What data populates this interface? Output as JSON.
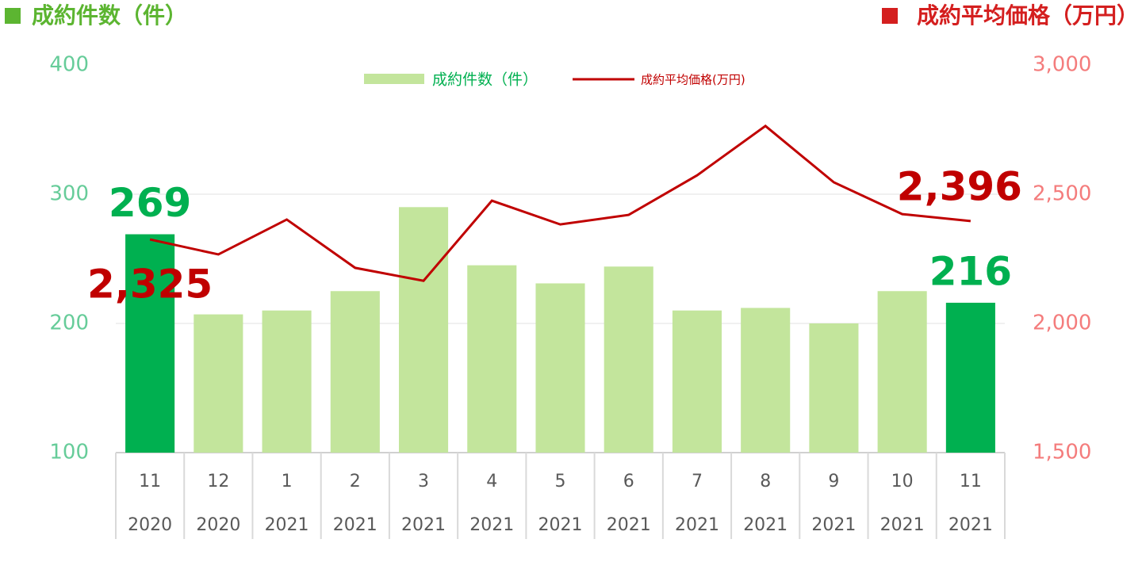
{
  "chart_data": {
    "type": "bar-line",
    "title": "成約件数（件）",
    "title_color": "#5cb531",
    "y2_title": "成約平均価格（万円）",
    "y2_title_color": "#d41f1f",
    "categories": [
      "11",
      "12",
      "1",
      "2",
      "3",
      "4",
      "5",
      "6",
      "7",
      "8",
      "9",
      "10",
      "11"
    ],
    "category_years": [
      "2020",
      "2020",
      "2021",
      "2021",
      "2021",
      "2021",
      "2021",
      "2021",
      "2021",
      "2021",
      "2021",
      "2021",
      "2021"
    ],
    "series": [
      {
        "name": "成約件数（件）",
        "type": "bar",
        "color": "#c3e59c",
        "colors": [
          "#00b050",
          "#c3e59c",
          "#c3e59c",
          "#c3e59c",
          "#c3e59c",
          "#c3e59c",
          "#c3e59c",
          "#c3e59c",
          "#c3e59c",
          "#c3e59c",
          "#c3e59c",
          "#c3e59c",
          "#00b050"
        ],
        "label_color": "#00b050",
        "values": [
          269,
          207,
          210,
          225,
          290,
          245,
          231,
          244,
          210,
          212,
          200,
          225,
          216
        ],
        "value_labels": [
          "269",
          null,
          null,
          null,
          null,
          null,
          null,
          null,
          null,
          null,
          null,
          null,
          "216"
        ]
      },
      {
        "name": "成約平均価格(万円)",
        "type": "line",
        "axis": "y2",
        "color": "#c00000",
        "label_color": "#c00000",
        "values": [
          2325,
          2267,
          2402,
          2215,
          2165,
          2475,
          2383,
          2420,
          2573,
          2764,
          2546,
          2423,
          2396
        ],
        "value_labels": [
          "2,325",
          null,
          null,
          null,
          null,
          null,
          null,
          null,
          null,
          null,
          null,
          null,
          "2,396"
        ]
      }
    ],
    "ylim": [
      100,
      400
    ],
    "yticks": [
      100,
      200,
      300,
      400
    ],
    "ytick_color": "#66cc99",
    "y2lim": [
      1500,
      3000
    ],
    "y2ticks": [
      {
        "value": 1500,
        "label": "1,500"
      },
      {
        "value": 2000,
        "label": "2,000"
      },
      {
        "value": 2500,
        "label": "2,500"
      },
      {
        "value": 3000,
        "label": "3,000"
      }
    ],
    "y2tick_color": "#f47c7c",
    "grid": true
  }
}
